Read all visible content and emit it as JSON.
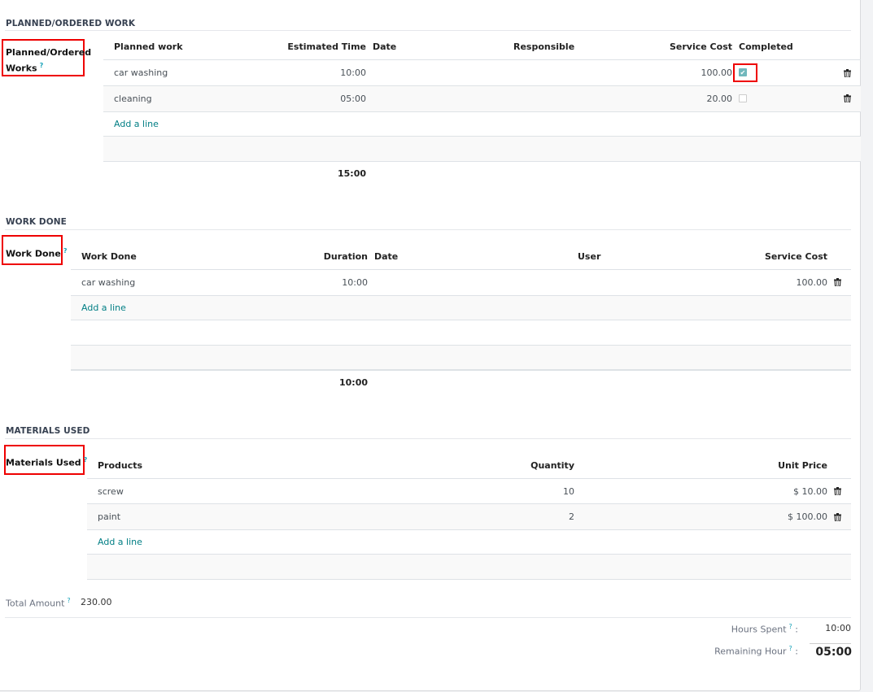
{
  "planned": {
    "section_title": "PLANNED/ORDERED WORK",
    "field_label_1": "Planned/Ordered",
    "field_label_2": "Works",
    "help": "?",
    "columns": [
      "Planned work",
      "Estimated Time",
      "Date",
      "Responsible",
      "Service Cost",
      "Completed"
    ],
    "rows": [
      {
        "work": "car washing",
        "time": "10:00",
        "date": "",
        "responsible": "",
        "cost": "100.00",
        "completed": true
      },
      {
        "work": "cleaning",
        "time": "05:00",
        "date": "",
        "responsible": "",
        "cost": "20.00",
        "completed": false
      }
    ],
    "add_line": "Add a line",
    "total_time": "15:00"
  },
  "work_done": {
    "section_title": "WORK DONE",
    "field_label": "Work Done",
    "help": "?",
    "columns": [
      "Work Done",
      "Duration",
      "Date",
      "User",
      "Service Cost"
    ],
    "rows": [
      {
        "work": "car washing",
        "duration": "10:00",
        "date": "",
        "user": "",
        "cost": "100.00"
      }
    ],
    "add_line": "Add a line",
    "total_duration": "10:00"
  },
  "materials": {
    "section_title": "MATERIALS USED",
    "field_label": "Materials Used",
    "help": "?",
    "columns": [
      "Products",
      "Quantity",
      "Unit Price"
    ],
    "rows": [
      {
        "product": "screw",
        "quantity": "10",
        "price": "$ 10.00"
      },
      {
        "product": "paint",
        "quantity": "2",
        "price": "$ 100.00"
      }
    ],
    "add_line": "Add a line"
  },
  "summary": {
    "total_amount_label": "Total Amount",
    "total_amount": "230.00",
    "hours_spent_label": "Hours Spent",
    "hours_spent": "10:00",
    "remaining_label": "Remaining Hour",
    "remaining": "05:00",
    "help": "?",
    "colon": ":"
  },
  "colors": {
    "accent": "#017e84",
    "highlight": "#e00000",
    "checkbox": "#71b8bd"
  }
}
